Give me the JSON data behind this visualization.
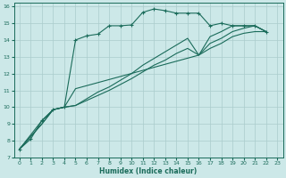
{
  "xlabel": "Humidex (Indice chaleur)",
  "xlim": [
    -0.5,
    23.5
  ],
  "ylim": [
    7,
    16.2
  ],
  "xticks": [
    0,
    1,
    2,
    3,
    4,
    5,
    6,
    7,
    8,
    9,
    10,
    11,
    12,
    13,
    14,
    15,
    16,
    17,
    18,
    19,
    20,
    21,
    22,
    23
  ],
  "yticks": [
    7,
    8,
    9,
    10,
    11,
    12,
    13,
    14,
    15,
    16
  ],
  "bg_color": "#cce8e8",
  "line_color": "#1a6b5a",
  "grid_color": "#aacccc",
  "line_marked": {
    "x": [
      0,
      1,
      2,
      3,
      4,
      5,
      6,
      7,
      8,
      9,
      10,
      11,
      12,
      13,
      14,
      15,
      16,
      17,
      18,
      19,
      20,
      21,
      22
    ],
    "y": [
      7.5,
      8.1,
      9.2,
      9.85,
      10.0,
      14.0,
      14.25,
      14.35,
      14.85,
      14.85,
      14.9,
      15.65,
      15.85,
      15.75,
      15.6,
      15.6,
      15.6,
      14.85,
      15.0,
      14.85,
      14.85,
      14.85,
      14.5
    ]
  },
  "line_steep": {
    "x": [
      0,
      2,
      3,
      4,
      5,
      16,
      17,
      18,
      19,
      20,
      21,
      22
    ],
    "y": [
      7.5,
      9.2,
      9.85,
      10.0,
      11.1,
      13.1,
      14.2,
      14.5,
      14.85,
      14.85,
      14.85,
      14.5
    ]
  },
  "line_diag1": {
    "x": [
      0,
      2,
      3,
      4,
      5,
      6,
      7,
      8,
      9,
      10,
      11,
      12,
      13,
      14,
      15,
      16,
      17,
      18,
      19,
      20,
      21,
      22
    ],
    "y": [
      7.5,
      9.0,
      9.85,
      10.0,
      10.1,
      10.4,
      10.7,
      11.0,
      11.35,
      11.7,
      12.1,
      12.5,
      12.8,
      13.2,
      13.5,
      13.1,
      13.5,
      13.8,
      14.2,
      14.4,
      14.5,
      14.5
    ]
  },
  "line_diag2": {
    "x": [
      0,
      2,
      3,
      4,
      5,
      6,
      7,
      8,
      9,
      10,
      11,
      12,
      13,
      14,
      15,
      16,
      17,
      18,
      19,
      20,
      21,
      22
    ],
    "y": [
      7.5,
      9.0,
      9.85,
      10.0,
      10.1,
      10.5,
      10.9,
      11.2,
      11.6,
      12.0,
      12.5,
      12.9,
      13.3,
      13.7,
      14.1,
      13.1,
      13.8,
      14.1,
      14.5,
      14.7,
      14.85,
      14.5
    ]
  }
}
